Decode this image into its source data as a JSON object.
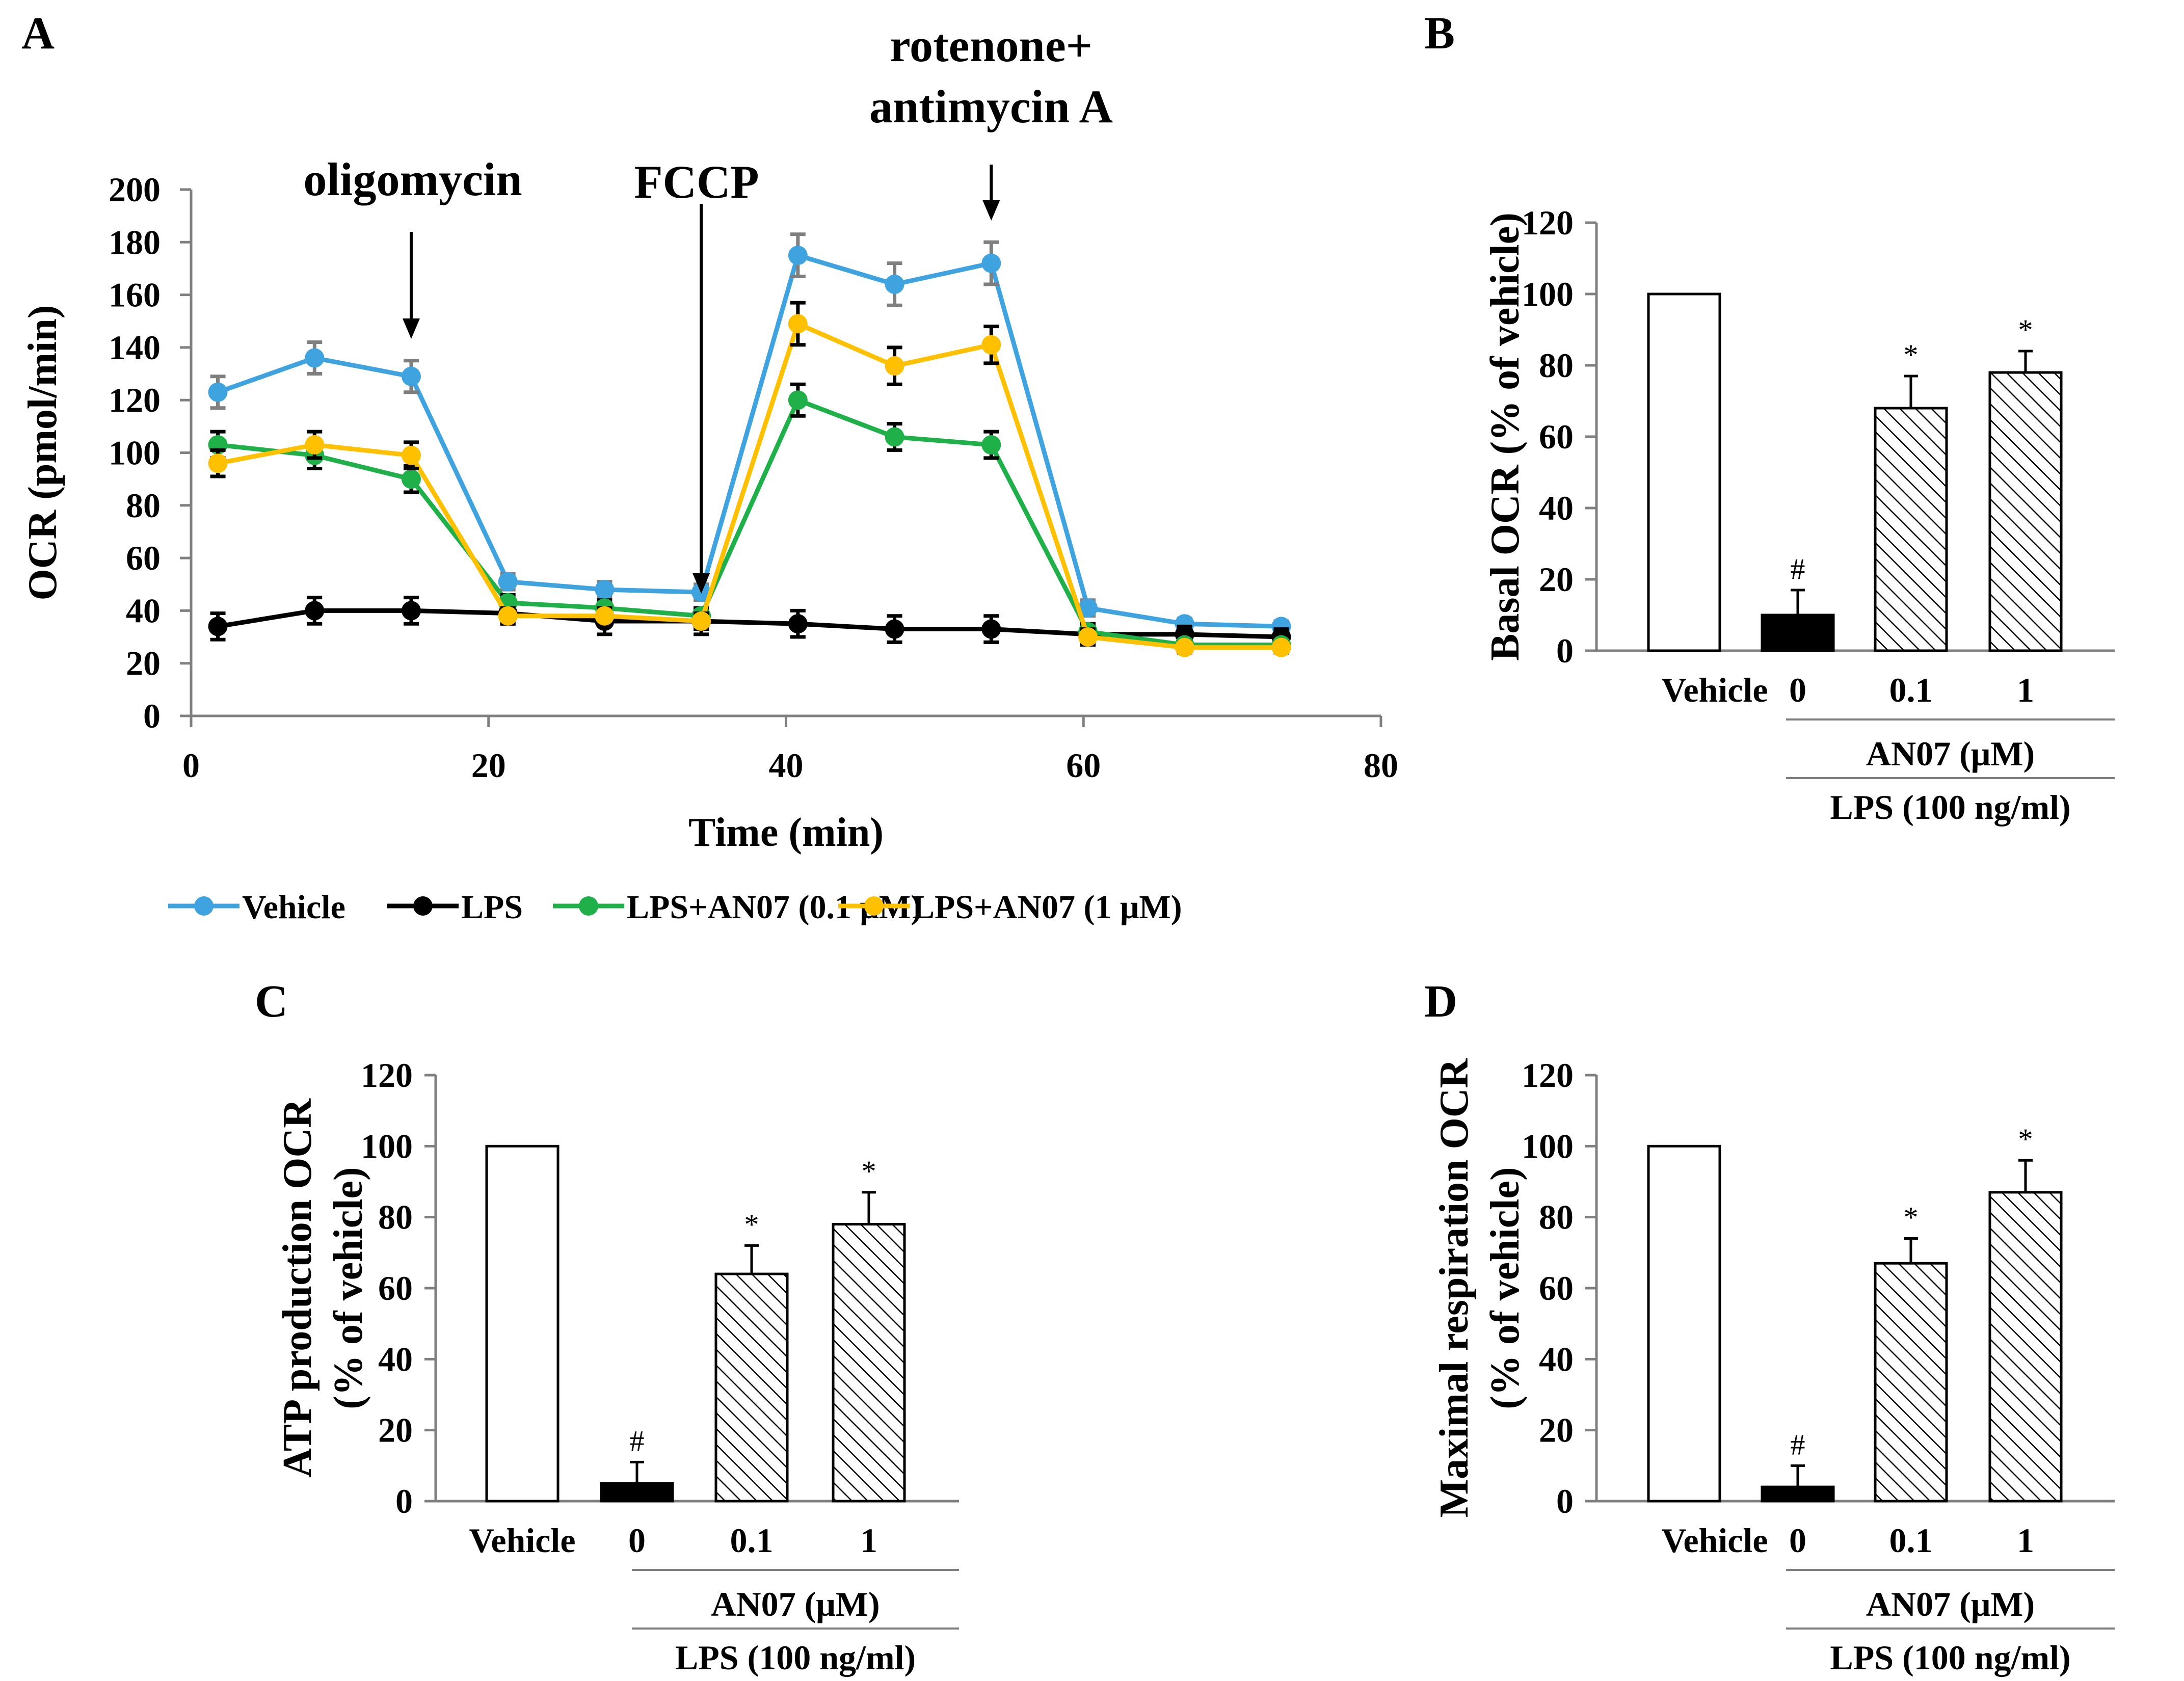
{
  "colors": {
    "vehicle": "#3fa3df",
    "lps": "#000000",
    "an07_01": "#1fb04a",
    "an07_1": "#ffc000",
    "axis": "#7f7f7f"
  },
  "chart_data": [
    {
      "id": "A",
      "panel_label": "A",
      "type": "line",
      "xlabel": "Time (min)",
      "ylabel": "OCR (pmol/min)",
      "xlim": [
        0,
        80
      ],
      "ylim": [
        0,
        200
      ],
      "xticks": [
        0,
        20,
        40,
        60,
        80
      ],
      "yticks": [
        0,
        20,
        40,
        60,
        80,
        100,
        120,
        140,
        160,
        180,
        200
      ],
      "x": [
        1.8,
        8.3,
        14.8,
        21.3,
        27.8,
        34.3,
        40.8,
        47.3,
        53.8,
        60.3,
        66.8,
        73.3
      ],
      "series": [
        {
          "name": "Vehicle",
          "color": "#3fa3df",
          "errcolor": "#7f7f7f",
          "values": [
            123,
            136,
            129,
            51,
            48,
            47,
            175,
            164,
            172,
            41,
            35,
            34
          ],
          "err": [
            6,
            6,
            6,
            3,
            3,
            3,
            8,
            8,
            8,
            3,
            2,
            2
          ]
        },
        {
          "name": "LPS",
          "color": "#000000",
          "errcolor": "#000000",
          "values": [
            34,
            40,
            40,
            39,
            36,
            36,
            35,
            33,
            33,
            31,
            31,
            30
          ],
          "err": [
            5,
            5,
            5,
            4,
            5,
            5,
            5,
            5,
            5,
            3,
            3,
            3
          ]
        },
        {
          "name": "LPS+AN07 (0.1 μM)",
          "color": "#1fb04a",
          "errcolor": "#000000",
          "values": [
            103,
            99,
            90,
            43,
            41,
            38,
            120,
            106,
            103,
            32,
            27,
            27
          ],
          "err": [
            5,
            5,
            5,
            3,
            3,
            3,
            6,
            5,
            5,
            3,
            2,
            2
          ]
        },
        {
          "name": "LPS+AN07 (1 μM)",
          "color": "#ffc000",
          "errcolor": "#000000",
          "values": [
            96,
            103,
            99,
            38,
            38,
            36,
            149,
            133,
            141,
            30,
            26,
            26
          ],
          "err": [
            5,
            5,
            5,
            3,
            3,
            3,
            8,
            7,
            7,
            3,
            2,
            2
          ]
        }
      ],
      "annotations": [
        {
          "text": "oligomycin",
          "x": 14.8
        },
        {
          "text": "FCCP",
          "x": 34.3
        },
        {
          "text": "rotenone+",
          "text2": "antimycin A",
          "x": 53.8
        }
      ]
    },
    {
      "id": "B",
      "panel_label": "B",
      "type": "bar",
      "ylabel": "Basal OCR (% of vehicle)",
      "ylim": [
        0,
        120
      ],
      "yticks": [
        0,
        20,
        40,
        60,
        80,
        100,
        120
      ],
      "categories": [
        "Vehicle",
        "0",
        "0.1",
        "1"
      ],
      "values": [
        100,
        10,
        68,
        78
      ],
      "err": [
        0,
        7,
        9,
        6
      ],
      "sig": [
        "",
        "#",
        "*",
        "*"
      ],
      "fills": [
        "white",
        "black",
        "hatch",
        "hatch"
      ],
      "group1": "AN07 (μM)",
      "group2": "LPS (100 ng/ml)"
    },
    {
      "id": "C",
      "panel_label": "C",
      "type": "bar",
      "ylabel": "ATP production OCR",
      "ylabel2": "(% of vehicle)",
      "ylim": [
        0,
        120
      ],
      "yticks": [
        0,
        20,
        40,
        60,
        80,
        100,
        120
      ],
      "categories": [
        "Vehicle",
        "0",
        "0.1",
        "1"
      ],
      "values": [
        100,
        5,
        64,
        78
      ],
      "err": [
        0,
        6,
        8,
        9
      ],
      "sig": [
        "",
        "#",
        "*",
        "*"
      ],
      "fills": [
        "white",
        "black",
        "hatch",
        "hatch"
      ],
      "group1": "AN07 (μM)",
      "group2": "LPS (100 ng/ml)"
    },
    {
      "id": "D",
      "panel_label": "D",
      "type": "bar",
      "ylabel": "Maximal respiration OCR",
      "ylabel2": "(% of vehicle)",
      "ylim": [
        0,
        120
      ],
      "yticks": [
        0,
        20,
        40,
        60,
        80,
        100,
        120
      ],
      "categories": [
        "Vehicle",
        "0",
        "0.1",
        "1"
      ],
      "values": [
        100,
        4,
        67,
        87
      ],
      "err": [
        0,
        6,
        7,
        9
      ],
      "sig": [
        "",
        "#",
        "*",
        "*"
      ],
      "fills": [
        "white",
        "black",
        "hatch",
        "hatch"
      ],
      "group1": "AN07 (μM)",
      "group2": "LPS (100 ng/ml)"
    }
  ]
}
